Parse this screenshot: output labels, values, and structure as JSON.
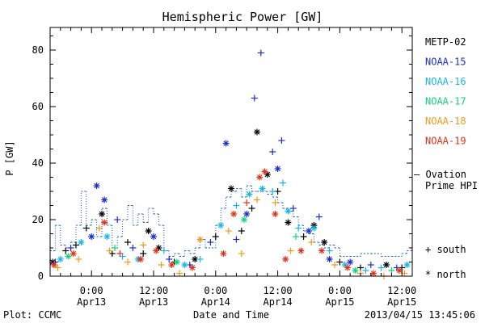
{
  "chart_data": {
    "type": "scatter",
    "title": "Hemispheric Power [GW]",
    "ylabel": "P [GW]",
    "xlabel": "Date and Time",
    "ylim": [
      0,
      88
    ],
    "yticks": [
      0,
      20,
      40,
      60,
      80
    ],
    "xlim": [
      "2013-04-12 16:00",
      "2013-04-15 14:00"
    ],
    "xticks": [
      {
        "x": "2013-04-13 00:00",
        "time": "0:00",
        "date": "Apr13"
      },
      {
        "x": "2013-04-13 12:00",
        "time": "12:00",
        "date": "Apr13"
      },
      {
        "x": "2013-04-14 00:00",
        "time": "0:00",
        "date": "Apr14"
      },
      {
        "x": "2013-04-14 12:00",
        "time": "12:00",
        "date": "Apr14"
      },
      {
        "x": "2013-04-15 00:00",
        "time": "0:00",
        "date": "Apr15"
      },
      {
        "x": "2013-04-15 12:00",
        "time": "12:00",
        "date": "Apr15"
      }
    ],
    "legend": [
      {
        "label": "METP-02",
        "color": "#000000"
      },
      {
        "label": "NOAA-15",
        "color": "#1a2fc8"
      },
      {
        "label": "NOAA-16",
        "color": "#18b4e8"
      },
      {
        "label": "NOAA-17",
        "color": "#12d080"
      },
      {
        "label": "NOAA-18",
        "color": "#f09a1a"
      },
      {
        "label": "NOAA-19",
        "color": "#e0301a"
      }
    ],
    "model_legend": {
      "line1": "— Ovation",
      "line2": "Prime HPI",
      "color": "#1560c0"
    },
    "marker_legend": {
      "south": "+ south",
      "north": "* north"
    },
    "ovation_series": {
      "name": "Ovation Prime HPI",
      "points": [
        [
          "2013-04-12 16:00",
          9
        ],
        [
          "2013-04-12 17:00",
          18
        ],
        [
          "2013-04-12 18:00",
          11
        ],
        [
          "2013-04-12 19:00",
          10
        ],
        [
          "2013-04-12 20:00",
          12
        ],
        [
          "2013-04-12 21:00",
          18
        ],
        [
          "2013-04-12 22:00",
          30
        ],
        [
          "2013-04-12 23:00",
          18
        ],
        [
          "2013-04-13 00:00",
          20
        ],
        [
          "2013-04-13 01:00",
          14
        ],
        [
          "2013-04-13 02:00",
          24
        ],
        [
          "2013-04-13 03:00",
          18
        ],
        [
          "2013-04-13 04:00",
          10
        ],
        [
          "2013-04-13 05:00",
          14
        ],
        [
          "2013-04-13 06:00",
          20
        ],
        [
          "2013-04-13 07:00",
          25
        ],
        [
          "2013-04-13 08:00",
          18
        ],
        [
          "2013-04-13 09:00",
          22
        ],
        [
          "2013-04-13 10:00",
          19
        ],
        [
          "2013-04-13 11:00",
          24
        ],
        [
          "2013-04-13 12:00",
          22
        ],
        [
          "2013-04-13 13:00",
          18
        ],
        [
          "2013-04-13 14:00",
          9
        ],
        [
          "2013-04-13 15:00",
          7
        ],
        [
          "2013-04-13 16:00",
          8
        ],
        [
          "2013-04-13 17:00",
          7
        ],
        [
          "2013-04-13 18:00",
          9
        ],
        [
          "2013-04-13 19:00",
          8
        ],
        [
          "2013-04-13 20:00",
          10
        ],
        [
          "2013-04-13 21:00",
          13
        ],
        [
          "2013-04-13 22:00",
          10
        ],
        [
          "2013-04-14 00:00",
          18
        ],
        [
          "2013-04-14 01:00",
          24
        ],
        [
          "2013-04-14 02:00",
          28
        ],
        [
          "2013-04-14 03:00",
          30
        ],
        [
          "2013-04-14 04:00",
          31
        ],
        [
          "2013-04-14 05:00",
          28
        ],
        [
          "2013-04-14 06:00",
          32
        ],
        [
          "2013-04-14 07:00",
          30
        ],
        [
          "2013-04-14 08:00",
          30
        ],
        [
          "2013-04-14 09:00",
          30
        ],
        [
          "2013-04-14 10:00",
          29
        ],
        [
          "2013-04-14 11:00",
          28
        ],
        [
          "2013-04-14 12:00",
          26
        ],
        [
          "2013-04-14 13:00",
          24
        ],
        [
          "2013-04-14 14:00",
          23
        ],
        [
          "2013-04-14 15:00",
          21
        ],
        [
          "2013-04-14 16:00",
          18
        ],
        [
          "2013-04-14 17:00",
          16
        ],
        [
          "2013-04-14 18:00",
          15
        ],
        [
          "2013-04-14 19:00",
          12
        ],
        [
          "2013-04-14 20:00",
          11
        ],
        [
          "2013-04-14 21:00",
          10
        ],
        [
          "2013-04-14 22:00",
          11
        ],
        [
          "2013-04-14 23:00",
          10
        ],
        [
          "2013-04-15 00:00",
          7
        ],
        [
          "2013-04-15 02:00",
          7
        ],
        [
          "2013-04-15 04:00",
          8
        ],
        [
          "2013-04-15 06:00",
          8
        ],
        [
          "2013-04-15 08:00",
          7
        ],
        [
          "2013-04-15 10:00",
          7
        ],
        [
          "2013-04-15 12:00",
          8
        ],
        [
          "2013-04-15 13:00",
          9
        ],
        [
          "2013-04-15 14:00",
          10
        ]
      ]
    },
    "series": [
      {
        "color": "#000000",
        "points": [
          [
            "2013-04-12 16:30",
            5,
            "north"
          ],
          [
            "2013-04-12 19:00",
            9,
            "south"
          ],
          [
            "2013-04-12 21:00",
            11,
            "south"
          ],
          [
            "2013-04-12 23:00",
            17,
            "south"
          ],
          [
            "2013-04-13 02:00",
            22,
            "north"
          ],
          [
            "2013-04-13 04:00",
            8,
            "south"
          ],
          [
            "2013-04-13 07:00",
            12,
            "south"
          ],
          [
            "2013-04-13 10:00",
            8,
            "south"
          ],
          [
            "2013-04-13 11:00",
            16,
            "north"
          ],
          [
            "2013-04-13 13:00",
            10,
            "north"
          ],
          [
            "2013-04-13 16:00",
            5,
            "south"
          ],
          [
            "2013-04-13 20:00",
            6,
            "north"
          ],
          [
            "2013-04-14 00:00",
            14,
            "south"
          ],
          [
            "2013-04-14 03:00",
            31,
            "north"
          ],
          [
            "2013-04-14 05:00",
            16,
            "south"
          ],
          [
            "2013-04-14 07:00",
            24,
            "south"
          ],
          [
            "2013-04-14 08:00",
            51,
            "north"
          ],
          [
            "2013-04-14 10:00",
            36,
            "north"
          ],
          [
            "2013-04-14 12:00",
            30,
            "south"
          ],
          [
            "2013-04-14 14:00",
            19,
            "north"
          ],
          [
            "2013-04-14 17:00",
            14,
            "south"
          ],
          [
            "2013-04-14 19:00",
            18,
            "north"
          ],
          [
            "2013-04-14 21:00",
            12,
            "north"
          ],
          [
            "2013-04-15 00:00",
            5,
            "south"
          ],
          [
            "2013-04-15 04:00",
            3,
            "south"
          ],
          [
            "2013-04-15 09:00",
            4,
            "north"
          ],
          [
            "2013-04-15 12:00",
            3,
            "south"
          ]
        ]
      },
      {
        "color": "#1a2fc8",
        "points": [
          [
            "2013-04-12 17:00",
            5,
            "south"
          ],
          [
            "2013-04-12 20:00",
            10,
            "south"
          ],
          [
            "2013-04-13 00:00",
            14,
            "north"
          ],
          [
            "2013-04-13 01:00",
            32,
            "north"
          ],
          [
            "2013-04-13 02:30",
            27,
            "north"
          ],
          [
            "2013-04-13 05:00",
            20,
            "south"
          ],
          [
            "2013-04-13 08:00",
            10,
            "south"
          ],
          [
            "2013-04-13 12:00",
            14,
            "north"
          ],
          [
            "2013-04-13 15:00",
            6,
            "south"
          ],
          [
            "2013-04-13 19:00",
            4,
            "south"
          ],
          [
            "2013-04-13 23:00",
            12,
            "south"
          ],
          [
            "2013-04-14 02:00",
            47,
            "north"
          ],
          [
            "2013-04-14 04:00",
            13,
            "south"
          ],
          [
            "2013-04-14 06:00",
            22,
            "north"
          ],
          [
            "2013-04-14 07:30",
            63,
            "south"
          ],
          [
            "2013-04-14 08:45",
            79,
            "south"
          ],
          [
            "2013-04-14 11:00",
            44,
            "south"
          ],
          [
            "2013-04-14 12:00",
            38,
            "north"
          ],
          [
            "2013-04-14 12:45",
            48,
            "south"
          ],
          [
            "2013-04-14 15:00",
            24,
            "south"
          ],
          [
            "2013-04-14 18:00",
            16,
            "north"
          ],
          [
            "2013-04-14 20:00",
            21,
            "south"
          ],
          [
            "2013-04-14 22:00",
            6,
            "north"
          ],
          [
            "2013-04-15 02:00",
            5,
            "north"
          ],
          [
            "2013-04-15 06:00",
            4,
            "south"
          ],
          [
            "2013-04-15 11:00",
            3,
            "south"
          ]
        ]
      },
      {
        "color": "#18b4e8",
        "points": [
          [
            "2013-04-12 18:00",
            6,
            "north"
          ],
          [
            "2013-04-12 22:00",
            12,
            "north"
          ],
          [
            "2013-04-13 03:00",
            14,
            "north"
          ],
          [
            "2013-04-13 06:00",
            7,
            "south"
          ],
          [
            "2013-04-13 09:00",
            6,
            "north"
          ],
          [
            "2013-04-13 14:00",
            9,
            "south"
          ],
          [
            "2013-04-13 18:00",
            4,
            "north"
          ],
          [
            "2013-04-13 21:00",
            6,
            "south"
          ],
          [
            "2013-04-14 01:00",
            18,
            "north"
          ],
          [
            "2013-04-14 04:00",
            25,
            "south"
          ],
          [
            "2013-04-14 06:30",
            29,
            "north"
          ],
          [
            "2013-04-14 09:00",
            31,
            "north"
          ],
          [
            "2013-04-14 11:00",
            30,
            "south"
          ],
          [
            "2013-04-14 13:00",
            33,
            "south"
          ],
          [
            "2013-04-14 14:00",
            23,
            "north"
          ],
          [
            "2013-04-14 16:00",
            17,
            "south"
          ],
          [
            "2013-04-14 19:00",
            17,
            "north"
          ],
          [
            "2013-04-14 22:00",
            9,
            "south"
          ],
          [
            "2013-04-15 01:00",
            4,
            "north"
          ],
          [
            "2013-04-15 05:00",
            2,
            "south"
          ],
          [
            "2013-04-15 08:00",
            3,
            "south"
          ],
          [
            "2013-04-15 13:00",
            4,
            "north"
          ]
        ]
      },
      {
        "color": "#12d080",
        "points": [
          [
            "2013-04-12 19:30",
            7,
            "north"
          ],
          [
            "2013-04-13 04:30",
            10,
            "south"
          ],
          [
            "2013-04-13 16:30",
            5,
            "north"
          ],
          [
            "2013-04-14 05:30",
            20,
            "north"
          ],
          [
            "2013-04-14 15:30",
            14,
            "south"
          ],
          [
            "2013-04-15 03:00",
            2,
            "north"
          ],
          [
            "2013-04-15 10:00",
            2,
            "south"
          ]
        ]
      },
      {
        "color": "#f09a1a",
        "points": [
          [
            "2013-04-12 17:30",
            3,
            "south"
          ],
          [
            "2013-04-12 21:30",
            6,
            "south"
          ],
          [
            "2013-04-13 01:30",
            17,
            "south"
          ],
          [
            "2013-04-13 03:30",
            9,
            "south"
          ],
          [
            "2013-04-13 07:00",
            5,
            "south"
          ],
          [
            "2013-04-13 10:00",
            11,
            "south"
          ],
          [
            "2013-04-13 13:30",
            4,
            "south"
          ],
          [
            "2013-04-13 17:00",
            1,
            "south"
          ],
          [
            "2013-04-13 21:00",
            13,
            "north"
          ],
          [
            "2013-04-14 02:30",
            16,
            "south"
          ],
          [
            "2013-04-14 05:00",
            8,
            "south"
          ],
          [
            "2013-04-14 08:00",
            27,
            "south"
          ],
          [
            "2013-04-14 11:30",
            26,
            "south"
          ],
          [
            "2013-04-14 14:30",
            9,
            "south"
          ],
          [
            "2013-04-14 18:30",
            12,
            "south"
          ],
          [
            "2013-04-14 23:00",
            4,
            "south"
          ],
          [
            "2013-04-15 04:00",
            1,
            "south"
          ],
          [
            "2013-04-15 08:30",
            0,
            "south"
          ],
          [
            "2013-04-15 12:30",
            1,
            "south"
          ]
        ]
      },
      {
        "color": "#e0301a",
        "points": [
          [
            "2013-04-12 16:45",
            4,
            "north"
          ],
          [
            "2013-04-12 20:30",
            8,
            "north"
          ],
          [
            "2013-04-13 02:30",
            19,
            "north"
          ],
          [
            "2013-04-13 05:30",
            8,
            "south"
          ],
          [
            "2013-04-13 09:30",
            6,
            "north"
          ],
          [
            "2013-04-13 12:30",
            9,
            "north"
          ],
          [
            "2013-04-13 15:30",
            4,
            "north"
          ],
          [
            "2013-04-13 19:30",
            3,
            "north"
          ],
          [
            "2013-04-14 01:30",
            8,
            "north"
          ],
          [
            "2013-04-14 03:30",
            22,
            "north"
          ],
          [
            "2013-04-14 06:00",
            26,
            "south"
          ],
          [
            "2013-04-14 08:30",
            35,
            "north"
          ],
          [
            "2013-04-14 09:30",
            37,
            "north"
          ],
          [
            "2013-04-14 11:30",
            22,
            "north"
          ],
          [
            "2013-04-14 13:30",
            6,
            "north"
          ],
          [
            "2013-04-14 16:30",
            9,
            "north"
          ],
          [
            "2013-04-14 20:30",
            9,
            "north"
          ],
          [
            "2013-04-15 01:30",
            3,
            "north"
          ],
          [
            "2013-04-15 06:30",
            1,
            "north"
          ],
          [
            "2013-04-15 11:30",
            2,
            "north"
          ]
        ]
      }
    ]
  },
  "footer": {
    "left": "Plot: CCMC",
    "right": "2013/04/15 13:45:06"
  }
}
